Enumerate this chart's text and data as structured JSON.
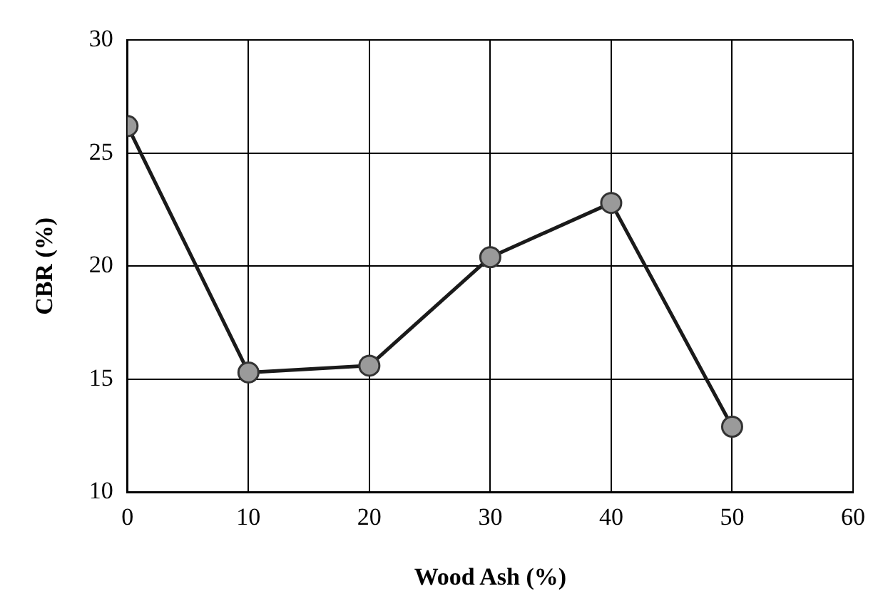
{
  "chart_data": {
    "type": "line",
    "xlabel": "Wood Ash (%)",
    "ylabel": "CBR (%)",
    "x": [
      0,
      10,
      20,
      30,
      40,
      50
    ],
    "series": [
      {
        "color": "#1a1a1a",
        "values": [
          26.2,
          15.3,
          15.6,
          20.4,
          22.8,
          12.9
        ]
      }
    ],
    "xlim": [
      0,
      60
    ],
    "xticks": [
      0,
      10,
      20,
      30,
      40,
      50,
      60
    ],
    "ylim": [
      10,
      30
    ],
    "yticks": [
      10,
      15,
      20,
      25,
      30
    ],
    "grid": true,
    "legend": false,
    "marker": "circle",
    "line_style": "solid"
  }
}
